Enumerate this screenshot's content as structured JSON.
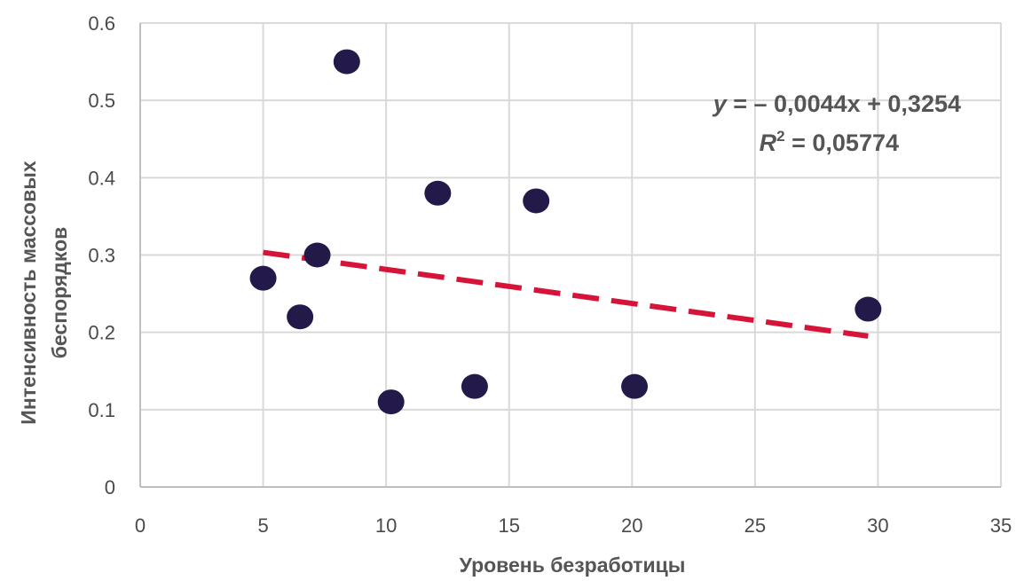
{
  "chart_data": {
    "type": "scatter",
    "title": "",
    "xlabel": "Уровень безработицы",
    "ylabel_lines": [
      "Интенсивность массовых",
      "беспорядков"
    ],
    "xlim": [
      0,
      35
    ],
    "ylim": [
      0,
      0.6
    ],
    "x_ticks": [
      "0",
      "5",
      "10",
      "15",
      "20",
      "25",
      "30",
      "35"
    ],
    "y_ticks": [
      "0",
      "0.1",
      "0.2",
      "0.3",
      "0.4",
      "0.5",
      "0.6"
    ],
    "grid": true,
    "points": [
      {
        "x": 5.0,
        "y": 0.27
      },
      {
        "x": 6.5,
        "y": 0.22
      },
      {
        "x": 7.2,
        "y": 0.3
      },
      {
        "x": 8.4,
        "y": 0.55
      },
      {
        "x": 10.2,
        "y": 0.11
      },
      {
        "x": 12.1,
        "y": 0.38
      },
      {
        "x": 13.6,
        "y": 0.13
      },
      {
        "x": 16.1,
        "y": 0.37
      },
      {
        "x": 20.1,
        "y": 0.13
      },
      {
        "x": 29.6,
        "y": 0.23
      }
    ],
    "trendline": {
      "slope": -0.0044,
      "intercept": 0.3254,
      "x_range": [
        5,
        29.6
      ],
      "style": "dashed"
    },
    "equation": {
      "line1_var": "y",
      "line1_rest": " = – 0,0044x  + 0,3254",
      "line2_var": "R",
      "line2_sup": "2",
      "line2_rest": " = 0,05774"
    },
    "colors": {
      "points": "#241a4a",
      "trendline": "#d6143a",
      "grid": "#d9d9d9",
      "axis": "#bfbfbf"
    }
  }
}
